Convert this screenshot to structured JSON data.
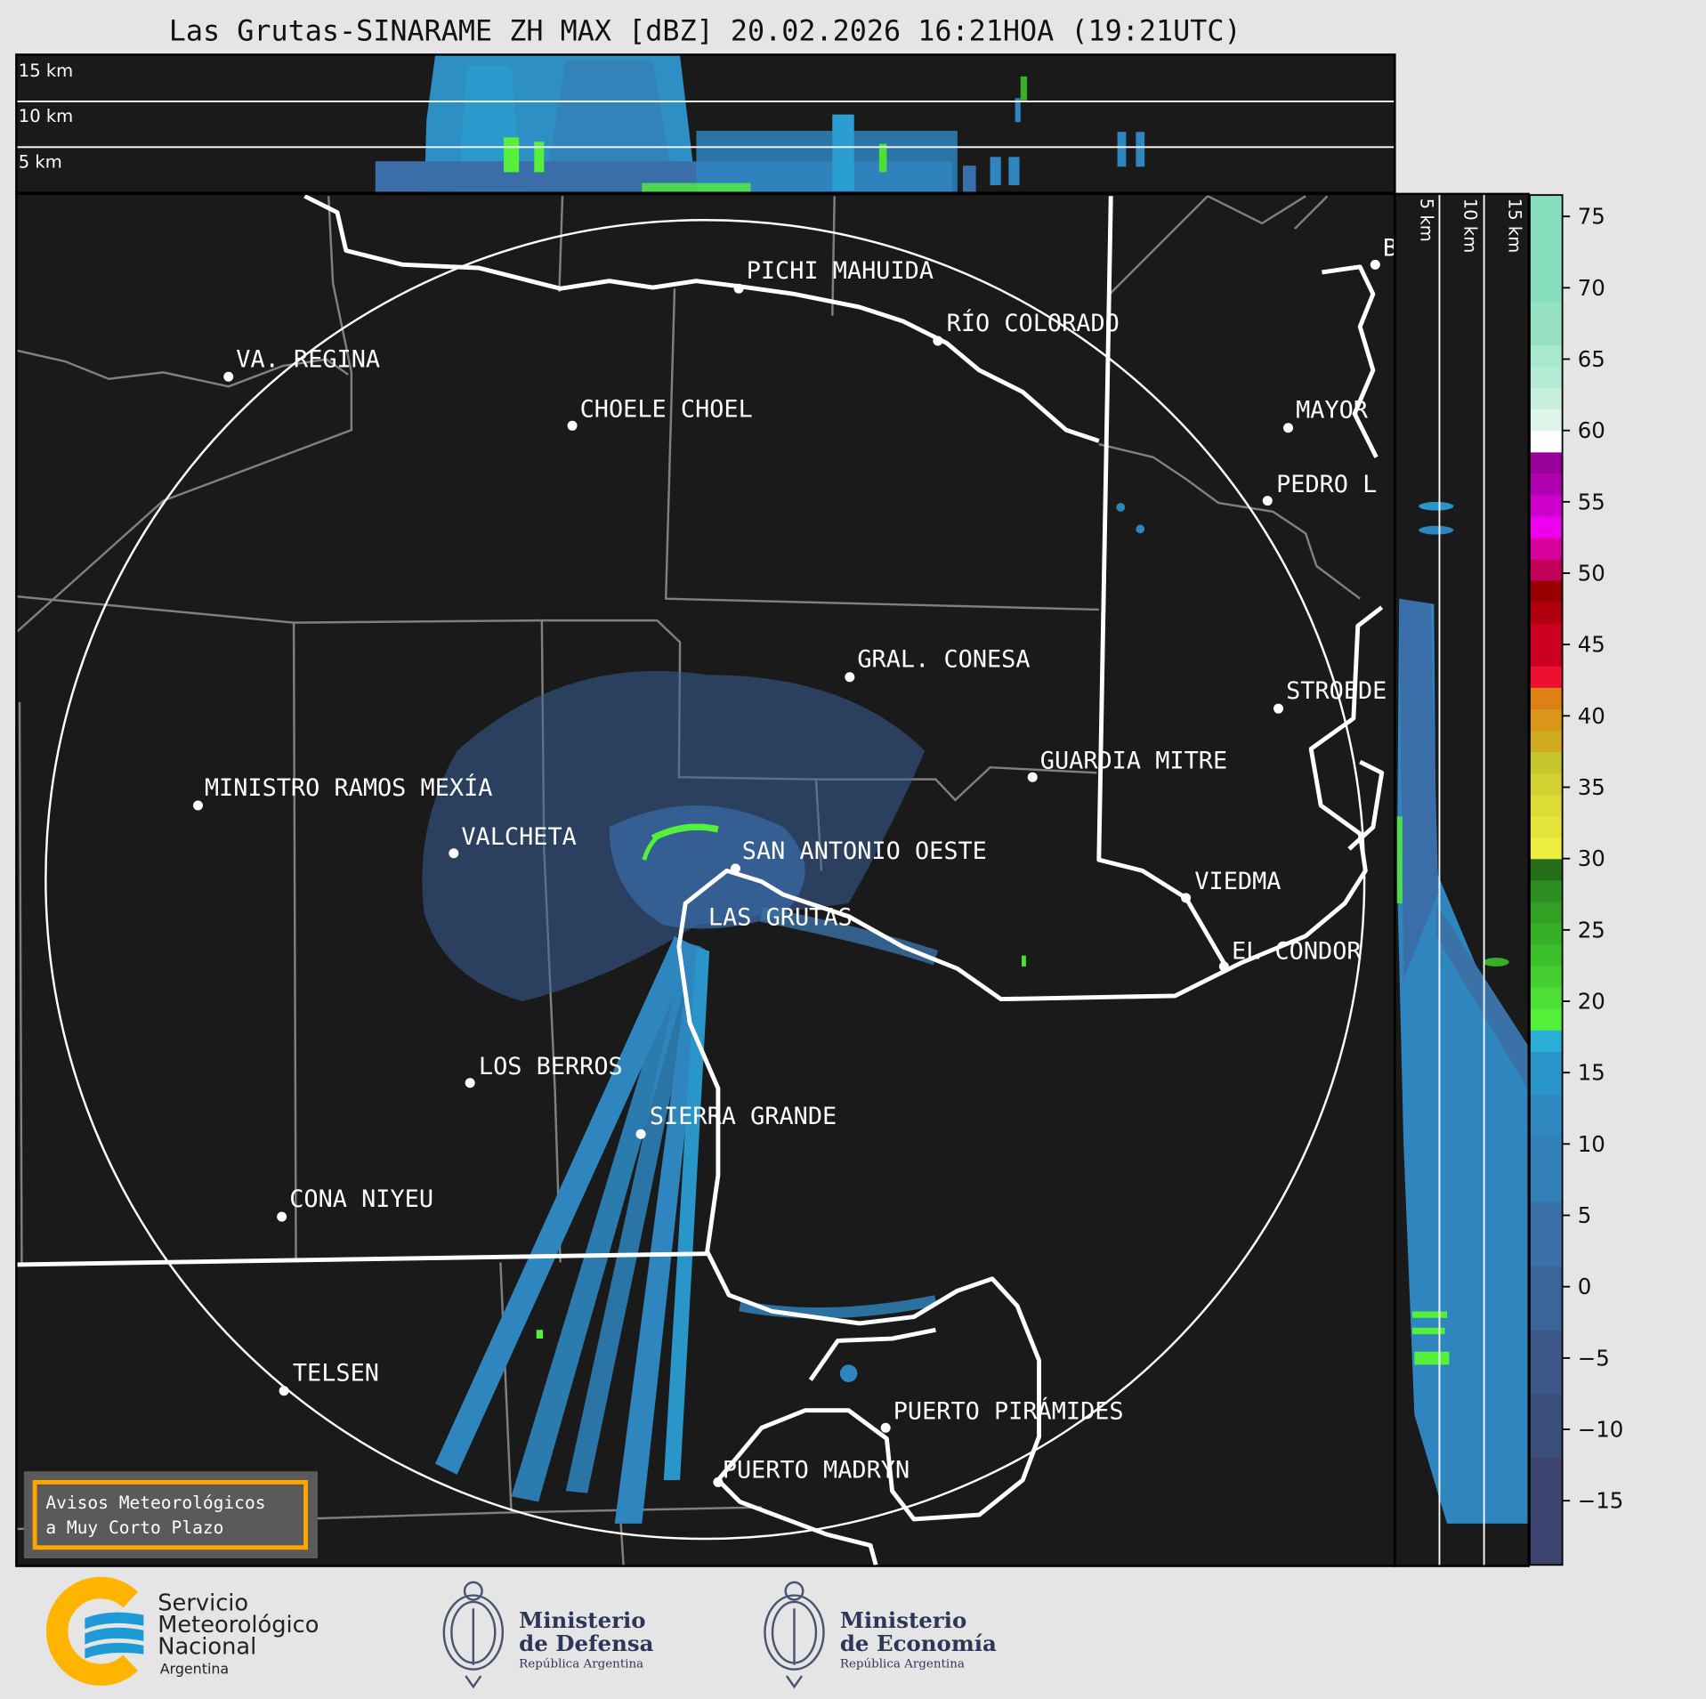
{
  "title": "Las Grutas-SINARAME ZH MAX [dBZ] 20.02.2026 16:21HOA (19:21UTC)",
  "top_profile": {
    "labels": [
      "15 km",
      "10 km",
      "5 km"
    ]
  },
  "side_profile": {
    "labels": [
      "5 km",
      "10 km",
      "15 km"
    ]
  },
  "colorbar": {
    "unit": "dBZ",
    "range": [
      -19.5,
      76.5
    ],
    "ticks": [
      "75",
      "70",
      "65",
      "60",
      "55",
      "50",
      "45",
      "40",
      "35",
      "30",
      "25",
      "20",
      "15",
      "10",
      "5",
      "0",
      "−5",
      "−10",
      "−15"
    ],
    "tick_values": [
      75,
      70,
      65,
      60,
      55,
      50,
      45,
      40,
      35,
      30,
      25,
      20,
      15,
      10,
      5,
      0,
      -5,
      -10,
      -15
    ],
    "segments": [
      [
        -19.5,
        -12,
        "#3d4470"
      ],
      [
        -12,
        -7.5,
        "#3c4e7c"
      ],
      [
        -7.5,
        -3,
        "#3d5888"
      ],
      [
        -3,
        1.5,
        "#3b6598"
      ],
      [
        1.5,
        6,
        "#3a72a8"
      ],
      [
        6,
        10.5,
        "#3480b8"
      ],
      [
        10.5,
        13.5,
        "#2f89c0"
      ],
      [
        13.5,
        16.5,
        "#2a95c8"
      ],
      [
        16.5,
        18,
        "#2ab0d8"
      ],
      [
        18,
        19.5,
        "#55f03a"
      ],
      [
        19.5,
        21,
        "#4ddf35"
      ],
      [
        21,
        22.5,
        "#45cf30"
      ],
      [
        22.5,
        24,
        "#3dbf2c"
      ],
      [
        24,
        25.5,
        "#37b028"
      ],
      [
        25.5,
        27,
        "#32a024"
      ],
      [
        27,
        28.5,
        "#2c8e20"
      ],
      [
        28.5,
        30,
        "#256e1c"
      ],
      [
        30,
        31.5,
        "#eeee40"
      ],
      [
        31.5,
        33,
        "#e3e33a"
      ],
      [
        33,
        34.5,
        "#dcdc36"
      ],
      [
        34.5,
        36,
        "#d2d232"
      ],
      [
        36,
        37.5,
        "#c5c52e"
      ],
      [
        37.5,
        39,
        "#d0aa20"
      ],
      [
        39,
        40.5,
        "#d99618"
      ],
      [
        40.5,
        42,
        "#dd8016"
      ],
      [
        42,
        43.5,
        "#ee1030"
      ],
      [
        43.5,
        46.5,
        "#cc0020"
      ],
      [
        46.5,
        48,
        "#b00010"
      ],
      [
        48,
        49.5,
        "#990000"
      ],
      [
        49.5,
        51,
        "#c0005a"
      ],
      [
        51,
        52.5,
        "#d8009a"
      ],
      [
        52.5,
        54,
        "#ee00ee"
      ],
      [
        54,
        55.5,
        "#d000cc"
      ],
      [
        55.5,
        57,
        "#b000b0"
      ],
      [
        57,
        58.5,
        "#990099"
      ],
      [
        58.5,
        60,
        "#ffffff"
      ],
      [
        60,
        61.5,
        "#e0f5ea"
      ],
      [
        61.5,
        63,
        "#c8f0dd"
      ],
      [
        63,
        64.5,
        "#b4ebd4"
      ],
      [
        64.5,
        66,
        "#a8e8cc"
      ],
      [
        66,
        69,
        "#98e2c4"
      ],
      [
        69,
        76.5,
        "#88dfbe"
      ]
    ]
  },
  "cities": [
    {
      "name": "PICHI MAHUIDA"
    },
    {
      "name": "RÍO COLORADO"
    },
    {
      "name": "VA. REGINA"
    },
    {
      "name": "CHOELE CHOEL"
    },
    {
      "name": "MAYOR"
    },
    {
      "name": "PEDRO L"
    },
    {
      "name": "GRAL. CONESA"
    },
    {
      "name": "STROEDE"
    },
    {
      "name": "GUARDIA MITRE"
    },
    {
      "name": "MINISTRO RAMOS MEXÍA"
    },
    {
      "name": "VALCHETA"
    },
    {
      "name": "SAN ANTONIO OESTE"
    },
    {
      "name": "LAS GRUTAS"
    },
    {
      "name": "VIEDMA"
    },
    {
      "name": "EL CONDOR"
    },
    {
      "name": "LOS BERROS"
    },
    {
      "name": "SIERRA GRANDE"
    },
    {
      "name": "CONA NIYEU"
    },
    {
      "name": "TELSEN"
    },
    {
      "name": "PUERTO PIRÁMIDES"
    },
    {
      "name": "PUERTO MADRYN"
    },
    {
      "name": "B"
    }
  ],
  "warning_box": {
    "line1": "Avisos Meteorológicos",
    "line2": "a Muy Corto Plazo",
    "border_color": "#ffa500"
  },
  "footer": {
    "smn": {
      "line1": "Servicio",
      "line2": "Meteorológico",
      "line3": "Nacional",
      "line4": "Argentina"
    },
    "defensa": {
      "line1": "Ministerio",
      "line2": "de Defensa",
      "line3": "República Argentina"
    },
    "economia": {
      "line1": "Ministerio",
      "line2": "de Economía",
      "line3": "República Argentina"
    }
  }
}
